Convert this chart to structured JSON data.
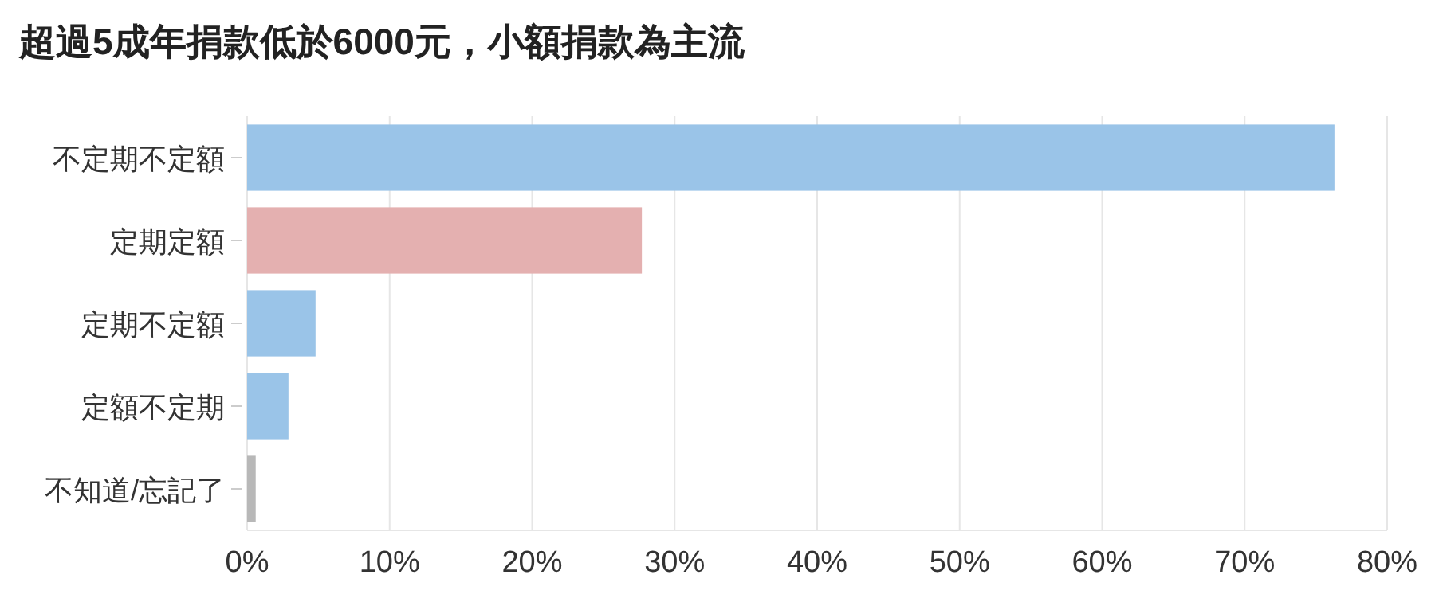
{
  "chart_data": {
    "type": "bar",
    "orientation": "horizontal",
    "title": "超過5成年捐款低於6000元，小額捐款為主流",
    "categories": [
      "不定期不定額",
      "定期定額",
      "定期不定額",
      "定額不定期",
      "不知道/忘記了"
    ],
    "values": [
      76.3,
      27.7,
      4.8,
      2.9,
      0.6
    ],
    "colors": [
      "#9ac4e8",
      "#e4b0b0",
      "#9ac4e8",
      "#9ac4e8",
      "#b8b8b8"
    ],
    "xlim": [
      0,
      80
    ],
    "xticks": [
      {
        "value": 0,
        "label": "0%"
      },
      {
        "value": 10,
        "label": "10%"
      },
      {
        "value": 20,
        "label": "20%"
      },
      {
        "value": 30,
        "label": "30%"
      },
      {
        "value": 40,
        "label": "40%"
      },
      {
        "value": 50,
        "label": "50%"
      },
      {
        "value": 60,
        "label": "60%"
      },
      {
        "value": 70,
        "label": "70%"
      },
      {
        "value": 80,
        "label": "80%"
      }
    ],
    "grid": "x"
  }
}
